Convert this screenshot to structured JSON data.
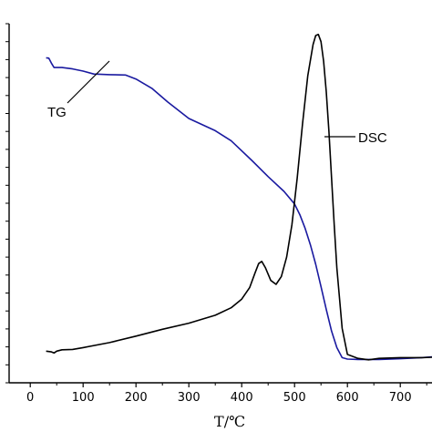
{
  "chart_data": {
    "type": "line",
    "xlabel": "T/℃",
    "ylabel": "",
    "xlim": [
      -40,
      760
    ],
    "ylim": [
      0,
      100
    ],
    "x_ticks": [
      0,
      100,
      200,
      300,
      400,
      500,
      600,
      700
    ],
    "x_tick_labels": [
      "0",
      "100",
      "200",
      "300",
      "400",
      "500",
      "600",
      "700"
    ],
    "y_minor_ticks": 21,
    "grid": false,
    "series": [
      {
        "name": "TG",
        "color": "#1a1aa0",
        "x": [
          30,
          35,
          40,
          45,
          50,
          60,
          80,
          100,
          120,
          150,
          180,
          200,
          230,
          260,
          300,
          350,
          380,
          420,
          450,
          480,
          500,
          510,
          520,
          530,
          540,
          550,
          560,
          570,
          580,
          590,
          600,
          620,
          640,
          660,
          700,
          740,
          760
        ],
        "y": [
          90.5,
          90.4,
          89.0,
          87.8,
          87.8,
          87.8,
          87.4,
          86.8,
          86.0,
          85.8,
          85.7,
          84.6,
          82.0,
          78.2,
          73.6,
          70.2,
          67.4,
          61.8,
          57.4,
          53.3,
          49.8,
          46.8,
          43.0,
          38.4,
          33.0,
          26.8,
          20.4,
          14.4,
          9.8,
          7.0,
          6.6,
          6.5,
          6.5,
          6.5,
          6.7,
          7.0,
          7.2
        ]
      },
      {
        "name": "DSC",
        "color": "#000000",
        "x": [
          30,
          40,
          45,
          50,
          60,
          80,
          100,
          150,
          200,
          250,
          300,
          350,
          380,
          400,
          415,
          425,
          432,
          438,
          445,
          455,
          465,
          475,
          485,
          495,
          505,
          515,
          525,
          535,
          540,
          545,
          550,
          555,
          560,
          565,
          570,
          575,
          580,
          590,
          600,
          620,
          640,
          660,
          700,
          740,
          760
        ],
        "y": [
          8.8,
          8.6,
          8.3,
          8.8,
          9.2,
          9.3,
          9.8,
          11.2,
          13.0,
          14.9,
          16.6,
          18.8,
          20.9,
          23.3,
          26.5,
          30.5,
          33.2,
          33.8,
          32.0,
          28.5,
          27.4,
          29.6,
          35.0,
          44.0,
          57.0,
          72.0,
          85.5,
          94.2,
          96.7,
          97.0,
          95.0,
          89.5,
          81.0,
          70.0,
          57.0,
          44.0,
          32.0,
          15.2,
          7.9,
          6.8,
          6.4,
          6.8,
          7.0,
          7.0,
          7.1
        ]
      }
    ],
    "annotations": [
      {
        "text": "TG",
        "series": "TG"
      },
      {
        "text": "DSC",
        "series": "DSC"
      }
    ]
  }
}
